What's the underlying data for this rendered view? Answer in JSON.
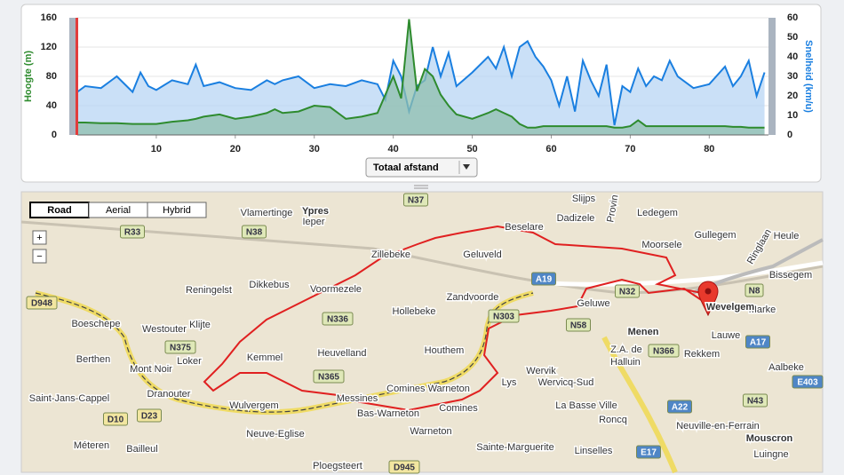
{
  "chart_data": {
    "type": "area",
    "y_label": "Hoogte (m)",
    "y2_label": "Snelheid (km/u)",
    "x": [
      0,
      1,
      3,
      5,
      7,
      8,
      9,
      10,
      12,
      14,
      15,
      16,
      18,
      20,
      22,
      24,
      25,
      26,
      28,
      30,
      32,
      34,
      36,
      38,
      39,
      40,
      41,
      42,
      43,
      44,
      45,
      46,
      47,
      48,
      50,
      52,
      53,
      54,
      55,
      56,
      57,
      58,
      59,
      60,
      61,
      62,
      63,
      64,
      65,
      66,
      67,
      68,
      69,
      70,
      71,
      72,
      73,
      74,
      75,
      76,
      78,
      80,
      82,
      83,
      84,
      85,
      86,
      87
    ],
    "series": [
      {
        "name": "Snelheid",
        "axis": "y2",
        "color": "#1a7fe0",
        "fill": "#b8d6f4",
        "values": [
          22,
          25,
          24,
          30,
          22,
          32,
          25,
          23,
          28,
          26,
          36,
          25,
          27,
          24,
          23,
          28,
          26,
          28,
          30,
          24,
          26,
          25,
          28,
          26,
          18,
          38,
          30,
          12,
          25,
          28,
          45,
          30,
          42,
          25,
          32,
          40,
          34,
          45,
          30,
          45,
          48,
          40,
          35,
          28,
          15,
          30,
          12,
          38,
          28,
          20,
          36,
          5,
          25,
          22,
          34,
          25,
          30,
          28,
          38,
          30,
          24,
          26,
          35,
          25,
          30,
          38,
          20,
          32
        ]
      },
      {
        "name": "Hoogte",
        "color": "#2e8b2e",
        "fill": "#8fbfae",
        "values": [
          17,
          17,
          16,
          16,
          15,
          15,
          15,
          15,
          18,
          20,
          22,
          25,
          28,
          22,
          25,
          30,
          35,
          30,
          32,
          40,
          38,
          22,
          25,
          30,
          55,
          80,
          50,
          158,
          60,
          90,
          80,
          55,
          40,
          28,
          22,
          30,
          35,
          30,
          25,
          15,
          10,
          10,
          12,
          12,
          12,
          12,
          12,
          12,
          12,
          12,
          12,
          10,
          10,
          12,
          20,
          12,
          12,
          12,
          12,
          12,
          12,
          12,
          12,
          11,
          11,
          10,
          10,
          10
        ]
      }
    ],
    "xlim": [
      0,
      87.5
    ],
    "xticks": [
      10,
      20,
      30,
      40,
      50,
      60,
      70,
      80
    ],
    "ylim": [
      0,
      160
    ],
    "yticks": [
      0,
      40,
      80,
      120,
      160
    ],
    "y2lim": [
      0,
      60
    ],
    "y2ticks": [
      0,
      10,
      20,
      30,
      40,
      50,
      60
    ],
    "x_selector": "Totaal afstand"
  },
  "map": {
    "view_buttons": [
      "Road",
      "Aerial",
      "Hybrid"
    ],
    "zoom": [
      "+",
      "−"
    ],
    "places": [
      "Ypres",
      "Ieper",
      "Vlamertinge",
      "Slijps",
      "Dadizele",
      "Provin",
      "Ledegem",
      "Moorsele",
      "Gullegem",
      "Heule",
      "Beselare",
      "Zillebeke",
      "Geluveld",
      "Reningelst",
      "Dikkebus",
      "Voormezele",
      "Zandvoorde",
      "Geluwe",
      "Hollebeke",
      "Boeschepe",
      "Westouter",
      "Klijte",
      "Menen",
      "Kemmel",
      "Heuvelland",
      "Houthem",
      "Berthen",
      "Mont Noir",
      "Loker",
      "Wervik",
      "Wervicq-Sud",
      "Z.A. de",
      "Halluin",
      "Rekkem",
      "Lauwe",
      "Marke",
      "Wevelgem",
      "Bissegem",
      "Aalbeke",
      "Comines Warneton",
      "Lys",
      "Saint-Jans-Cappel",
      "Dranouter",
      "Messines",
      "Comines",
      "La Basse Ville",
      "Roncq",
      "Wulvergem",
      "Bas-Warneton",
      "Warneton",
      "Neuve-Eglise",
      "Neuville-en-Ferrain",
      "Mouscron",
      "Méteren",
      "Bailleul",
      "Sainte-Marguerite",
      "Linselles",
      "Luingne",
      "Ploegsteert",
      "Ringlaan"
    ],
    "shields": [
      {
        "text": "N37",
        "color": "#dfe8b8"
      },
      {
        "text": "N38",
        "color": "#dfe8b8"
      },
      {
        "text": "R33",
        "color": "#dfe8b8"
      },
      {
        "text": "A19",
        "color": "#4f86c6"
      },
      {
        "text": "N32",
        "color": "#dfe8b8"
      },
      {
        "text": "N8",
        "color": "#dfe8b8"
      },
      {
        "text": "N336",
        "color": "#dfe8b8"
      },
      {
        "text": "N303",
        "color": "#dfe8b8"
      },
      {
        "text": "N58",
        "color": "#dfe8b8"
      },
      {
        "text": "N375",
        "color": "#dfe8b8"
      },
      {
        "text": "N366",
        "color": "#dfe8b8"
      },
      {
        "text": "A17",
        "color": "#4f86c6"
      },
      {
        "text": "N365",
        "color": "#dfe8b8"
      },
      {
        "text": "E403",
        "color": "#4f86c6"
      },
      {
        "text": "A22",
        "color": "#4f86c6"
      },
      {
        "text": "N43",
        "color": "#dfe8b8"
      },
      {
        "text": "D10",
        "color": "#f2e6a0"
      },
      {
        "text": "D23",
        "color": "#f2e6a0"
      },
      {
        "text": "E17",
        "color": "#4f86c6"
      },
      {
        "text": "D945",
        "color": "#f2e6a0"
      },
      {
        "text": "D948",
        "color": "#f2e6a0"
      }
    ]
  }
}
